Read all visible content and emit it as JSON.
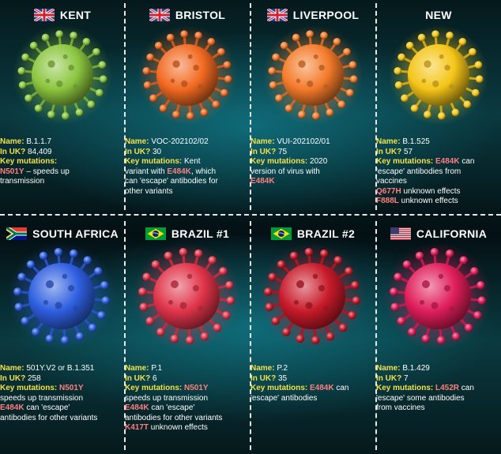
{
  "colors": {
    "label_yellow": "#f2e24a",
    "mutation_pink": "#ff7f7f",
    "text_white": "#ffffff"
  },
  "variants": [
    {
      "title": "KENT",
      "flag": "uk-flag",
      "virus_color": "#8cc63f",
      "name_label": "Name:",
      "name": "B.1.1.7",
      "uk_label": "In UK?",
      "uk": "84,409",
      "mut_label": "Key mutations:",
      "lines": [
        {
          "m": "N501Y",
          "t": " – speeds up"
        },
        {
          "m": "",
          "t": "transmission"
        }
      ]
    },
    {
      "title": "BRISTOL",
      "flag": "uk-flag",
      "virus_color": "#f26a21",
      "name_label": "Name:",
      "name": "VOC-202102/02",
      "uk_label": "In UK?",
      "uk": "30",
      "mut_label": "Key mutations:",
      "mut_text": "Kent",
      "lines": [
        {
          "m": "",
          "t": "variant with "
        },
        {
          "m": "",
          "t": "can 'escape' antibodies for"
        },
        {
          "m": "",
          "t": "other variants"
        }
      ],
      "inline_mut": "E484K",
      "inline_after": ", which"
    },
    {
      "title": "LIVERPOOL",
      "flag": "uk-flag",
      "virus_color": "#f47b2a",
      "name_label": "Name:",
      "name": "VUI-202102/01",
      "uk_label": "In UK?",
      "uk": "75",
      "mut_label": "Key mutations:",
      "mut_text": "2020",
      "lines": [
        {
          "m": "",
          "t": "version of virus with"
        },
        {
          "m": "E484K",
          "t": ""
        }
      ]
    },
    {
      "title": "NEW",
      "flag": "",
      "virus_color": "#f5c518",
      "name_label": "Name:",
      "name": "B.1.525",
      "uk_label": "In UK?",
      "uk": "57",
      "mut_label": "Key mutations:",
      "mut_inline": "E484K",
      "mut_text": " can",
      "lines": [
        {
          "m": "",
          "t": "'escape' antibodies from"
        },
        {
          "m": "",
          "t": "vaccines"
        },
        {
          "m": "Q677H",
          "t": " unknown effects"
        },
        {
          "m": "F888L",
          "t": " unknown effects"
        }
      ]
    },
    {
      "title": "SOUTH AFRICA",
      "flag": "south-africa-flag",
      "virus_color": "#2e5fe0",
      "name_label": "Name:",
      "name": "501Y.V2 or B.1.351",
      "uk_label": "In UK?",
      "uk": "258",
      "mut_label": "Key mutations:",
      "mut_inline": "N501Y",
      "lines": [
        {
          "m": "",
          "t": "speeds up transmission"
        },
        {
          "m": "E484K",
          "t": " can 'escape'"
        },
        {
          "m": "",
          "t": "antibodies for other variants"
        }
      ]
    },
    {
      "title": "BRAZIL #1",
      "flag": "brazil-flag",
      "virus_color": "#e0344a",
      "name_label": "Name:",
      "name": "P.1",
      "uk_label": "In UK?",
      "uk": "6",
      "mut_label": "Key mutations:",
      "mut_inline": "N501Y",
      "lines": [
        {
          "m": "",
          "t": "speeds up transmission"
        },
        {
          "m": "E484K",
          "t": " can 'escape'"
        },
        {
          "m": "",
          "t": "antibodies for other variants"
        },
        {
          "m": "K417T",
          "t": " unknown effects"
        }
      ]
    },
    {
      "title": "BRAZIL #2",
      "flag": "brazil-flag",
      "virus_color": "#c81a2a",
      "name_label": "Name:",
      "name": "P.2",
      "uk_label": "In UK?",
      "uk": "35",
      "mut_label": "Key mutations:",
      "mut_inline": "E484K",
      "mut_text": " can",
      "lines": [
        {
          "m": "",
          "t": "'escape' antibodies"
        }
      ]
    },
    {
      "title": "CALIFORNIA",
      "flag": "usa-flag",
      "virus_color": "#e01e5a",
      "name_label": "Name:",
      "name": "B.1.429",
      "uk_label": "In UK?",
      "uk": "7",
      "mut_label": "Key mutations:",
      "mut_inline": "L452R",
      "mut_text": " can",
      "lines": [
        {
          "m": "",
          "t": "'escape' some antibodies"
        },
        {
          "m": "",
          "t": "from vaccines"
        }
      ]
    }
  ]
}
